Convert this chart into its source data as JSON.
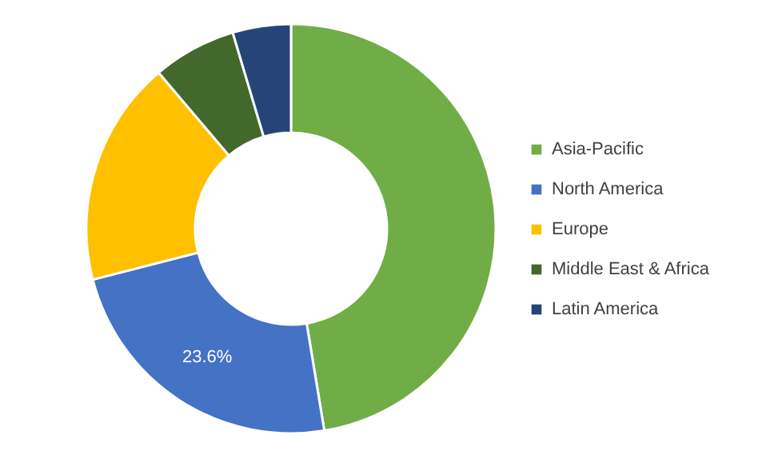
{
  "chart_data": {
    "type": "donut",
    "categories": [
      "Asia-Pacific",
      "North America",
      "Europe",
      "Middle East & Africa",
      "Latin America"
    ],
    "values": [
      47.4,
      23.6,
      17.8,
      6.6,
      4.6
    ],
    "colors": [
      "#70ad47",
      "#4472c4",
      "#ffc000",
      "#43682b",
      "#264478"
    ],
    "value_labels": [
      null,
      "23.6%",
      null,
      null,
      null
    ],
    "legend": "right"
  }
}
